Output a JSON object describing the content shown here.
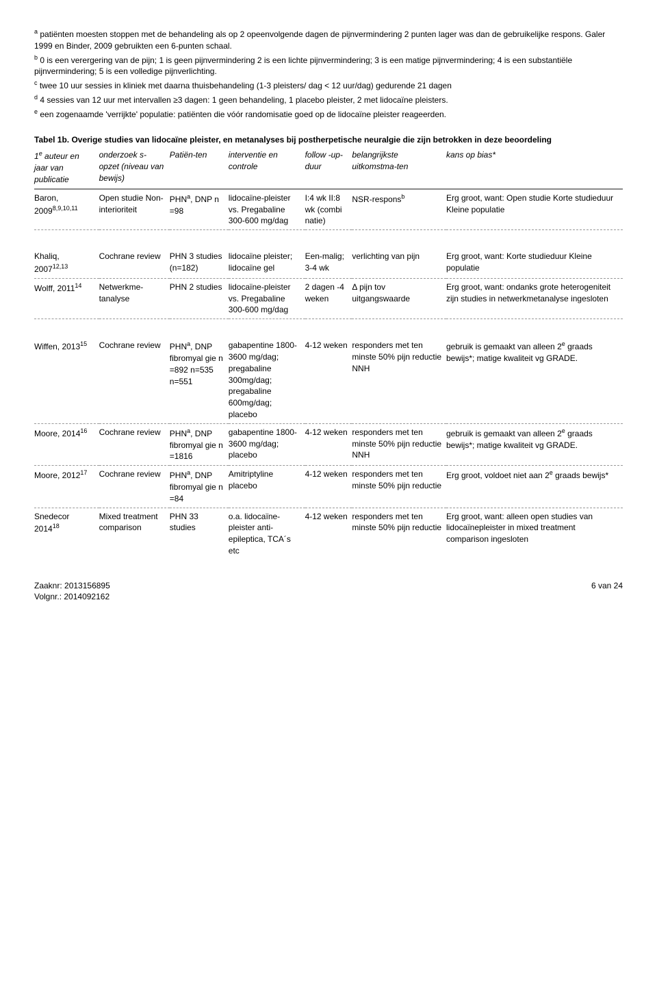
{
  "footnotes": {
    "a": "patiënten moesten stoppen met de behandeling als op 2 opeenvolgende dagen de pijnvermindering 2 punten lager was dan de gebruikelijke respons. Galer 1999 en Binder, 2009 gebruikten een 6-punten schaal.",
    "b": "0 is een verergering van de pijn; 1 is geen pijnvermindering 2 is een lichte pijnvermindering; 3 is een matige pijnvermindering; 4 is een substantiële pijnvermindering; 5 is een volledige pijnverlichting.",
    "c": "twee 10 uur sessies in kliniek met daarna thuisbehandeling (1-3 pleisters/ dag < 12 uur/dag) gedurende 21 dagen",
    "d": "4 sessies van 12 uur met intervallen ≥3 dagen: 1 geen behandeling, 1 placebo pleister, 2 met lidocaïne pleisters.",
    "e": "een zogenaamde 'verrijkte' populatie:  patiënten die vóór randomisatie goed op de lidocaïne pleister reageerden."
  },
  "table_title": "Tabel 1b. Overige studies van lidocaïne pleister, en metanalyses bij postherpetische neuralgie die zijn betrokken in deze beoordeling",
  "headers": {
    "author": "1e auteur en jaar van publicatie",
    "design": "onderzoek s-opzet (niveau van bewijs)",
    "patients": "Patiën-ten",
    "intervention": "interventie en controle",
    "follow": "follow -up-duur",
    "outcome": "belangrijkste uitkomstma-ten",
    "bias": "kans op bias*"
  },
  "rows": [
    {
      "author": "Baron, 2009",
      "author_sup": "8,9,10,11",
      "design": "Open studie Non-interioriteit",
      "patients_html": "PHN<sup>a</sup>, DNP n =98",
      "intervention": "lidocaïne-pleister vs. Pregabaline 300-600 mg/dag",
      "follow": "I:4 wk II:8 wk (combi natie)",
      "outcome_html": "NSR-respons<sup>b</sup>",
      "bias": "Erg groot, want: Open studie Korte studieduur Kleine populatie"
    },
    {
      "author": "Khaliq, 2007",
      "author_sup": "12,13",
      "design": "Cochrane review",
      "patients_html": "PHN 3 studies (n=182)",
      "intervention": "lidocaïne pleister; lidocaïne gel",
      "follow": "Een-malig; 3-4 wk",
      "outcome_html": "verlichting van pijn",
      "bias": "Erg groot, want: Korte studieduur Kleine populatie"
    },
    {
      "author": "Wolff, 2011",
      "author_sup": "14",
      "design": "Netwerkme-tanalyse",
      "patients_html": "PHN 2 studies",
      "intervention": "lidocaïne-pleister vs. Pregabaline 300-600 mg/dag",
      "follow": "2 dagen -4 weken",
      "outcome_html": "Δ pijn tov uitgangswaarde",
      "bias": "Erg groot, want: ondanks grote heterogeniteit zijn studies in netwerkmetanalyse ingesloten"
    },
    {
      "author": "Wiffen, 2013",
      "author_sup": "15",
      "design": "Cochrane review",
      "patients_html": "PHN<sup>a</sup>, DNP fibromyal gie n =892 n=535 n=551",
      "intervention": "gabapentine 1800-3600 mg/dag; pregabaline 300mg/dag; pregabaline 600mg/dag; placebo",
      "follow": "4-12 weken",
      "outcome_html": "responders met ten minste 50% pijn reductie NNH",
      "bias": "gebruik is gemaakt van alleen 2e graads bewijs*; matige kwaliteit vg GRADE."
    },
    {
      "author": "Moore, 2014",
      "author_sup": "16",
      "design": "Cochrane review",
      "patients_html": "PHN<sup>a</sup>, DNP fibromyal gie n =1816",
      "intervention": "gabapentine 1800-3600 mg/dag; placebo",
      "follow": "4-12 weken",
      "outcome_html": "responders met ten minste 50% pijn reductie NNH",
      "bias": "gebruik is gemaakt van alleen 2e graads bewijs*; matige kwaliteit vg GRADE."
    },
    {
      "author": "Moore, 2012",
      "author_sup": "17",
      "design": "Cochrane review",
      "patients_html": "PHN<sup>a</sup>, DNP fibromyal gie n =84",
      "intervention": "Amitriptyline placebo",
      "follow": "4-12 weken",
      "outcome_html": "responders met ten minste 50% pijn reductie",
      "bias": "Erg groot, voldoet niet aan 2e graads bewijs*"
    },
    {
      "author": "Snedecor 2014",
      "author_sup": "18",
      "design": "Mixed treatment comparison",
      "patients_html": "PHN 33 studies",
      "intervention": "o.a. lidocaïne-pleister anti-epileptica, TCA´s etc",
      "follow": "4-12 weken",
      "outcome_html": "responders met ten minste 50% pijn reductie",
      "bias": "Erg groot, want: alleen open studies van lidocaïnepleister in mixed treatment comparison ingesloten"
    }
  ],
  "footer": {
    "zaaknr_label": "Zaaknr:",
    "zaaknr": "2013156895",
    "volgnr_label": "Volgnr.:",
    "volgnr": "2014092162",
    "page": "6 van 24"
  }
}
